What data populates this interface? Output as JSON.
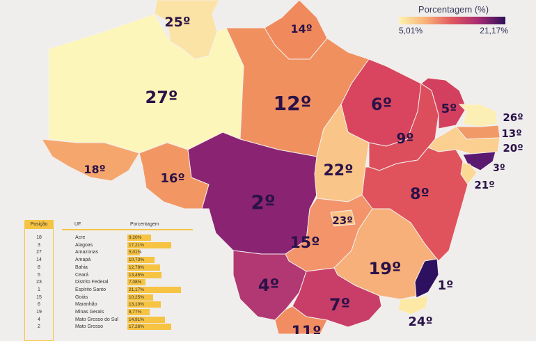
{
  "legend": {
    "title": "Porcentagem (%)",
    "min": "5,01%",
    "max": "21,17%",
    "colors": [
      "#fdf3b0",
      "#f9b176",
      "#e05860",
      "#a72b72",
      "#2d0f5c"
    ]
  },
  "map_labels": {
    "roraima": "25º",
    "amazonas": "27º",
    "amapa": "14º",
    "para": "12º",
    "acre": "18º",
    "rondonia": "16º",
    "mato_grosso": "2º",
    "maranhao": "6º",
    "piaui": "9º",
    "ceara": "5º",
    "rio_grande_do_norte": "26º",
    "paraiba": "13º",
    "pernambuco": "20º",
    "alagoas": "3º",
    "sergipe": "21º",
    "tocantins": "22º",
    "bahia": "8º",
    "goias": "15º",
    "distrito_federal": "23º",
    "minas_gerais": "19º",
    "espirito_santo": "1º",
    "mato_grosso_do_sul": "4º",
    "sao_paulo": "7º",
    "rio_de_janeiro": "24º",
    "parana": "11º"
  },
  "table": {
    "headers": {
      "position": "Posição",
      "uf": "UF",
      "percent": "Porcentagem"
    },
    "rows": [
      {
        "pos": "18",
        "uf": "Acre",
        "pct": "9,20%",
        "value": 9.2
      },
      {
        "pos": "3",
        "uf": "Alagoas",
        "pct": "17,21%",
        "value": 17.21
      },
      {
        "pos": "27",
        "uf": "Amazonas",
        "pct": "5,01%",
        "value": 5.01
      },
      {
        "pos": "14",
        "uf": "Amapá",
        "pct": "10,73%",
        "value": 10.73
      },
      {
        "pos": "8",
        "uf": "Bahia",
        "pct": "12,78%",
        "value": 12.78
      },
      {
        "pos": "5",
        "uf": "Ceará",
        "pct": "13,45%",
        "value": 13.45
      },
      {
        "pos": "23",
        "uf": "Distrito Federal",
        "pct": "7,08%",
        "value": 7.08
      },
      {
        "pos": "1",
        "uf": "Espírito Santo",
        "pct": "21,17%",
        "value": 21.17
      },
      {
        "pos": "15",
        "uf": "Goiás",
        "pct": "10,25%",
        "value": 10.25
      },
      {
        "pos": "6",
        "uf": "Maranhão",
        "pct": "13,10%",
        "value": 13.1
      },
      {
        "pos": "19",
        "uf": "Minas Gerais",
        "pct": "8,77%",
        "value": 8.77
      },
      {
        "pos": "4",
        "uf": "Mato Grosso do Sul",
        "pct": "14,91%",
        "value": 14.91
      },
      {
        "pos": "2",
        "uf": "Mato Grosso",
        "pct": "17,26%",
        "value": 17.26
      }
    ]
  }
}
